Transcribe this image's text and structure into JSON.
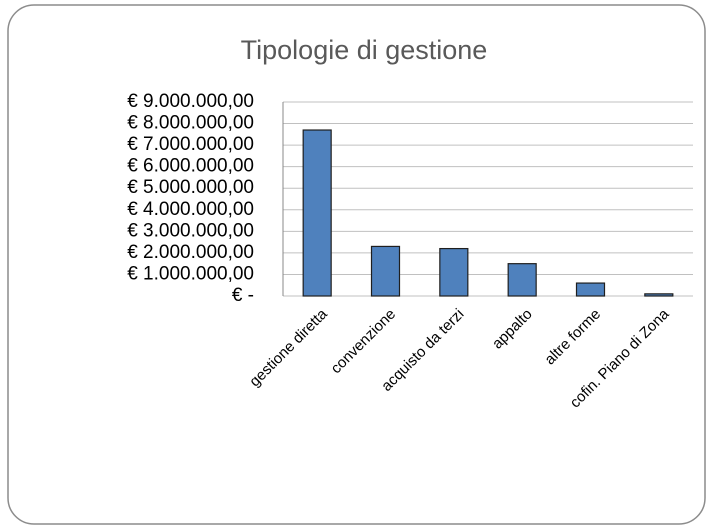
{
  "chart_data": {
    "type": "bar",
    "title": "Tipologie di gestione",
    "categories": [
      "gestione diretta",
      "convenzione",
      "acquisto da terzi",
      "appalto",
      "altre forme",
      "cofin. Piano di Zona"
    ],
    "values": [
      7700000,
      2300000,
      2200000,
      1500000,
      600000,
      100000
    ],
    "color": "#4f81bd",
    "ylim": [
      0,
      9000000
    ],
    "yticks": [
      {
        "value": 0,
        "label": "€ -"
      },
      {
        "value": 1000000,
        "label": "€ 1.000.000,00"
      },
      {
        "value": 2000000,
        "label": "€ 2.000.000,00"
      },
      {
        "value": 3000000,
        "label": "€ 3.000.000,00"
      },
      {
        "value": 4000000,
        "label": "€ 4.000.000,00"
      },
      {
        "value": 5000000,
        "label": "€ 5.000.000,00"
      },
      {
        "value": 6000000,
        "label": "€ 6.000.000,00"
      },
      {
        "value": 7000000,
        "label": "€ 7.000.000,00"
      },
      {
        "value": 8000000,
        "label": "€ 8.000.000,00"
      },
      {
        "value": 9000000,
        "label": "€ 9.000.000,00"
      }
    ],
    "grid": true
  }
}
